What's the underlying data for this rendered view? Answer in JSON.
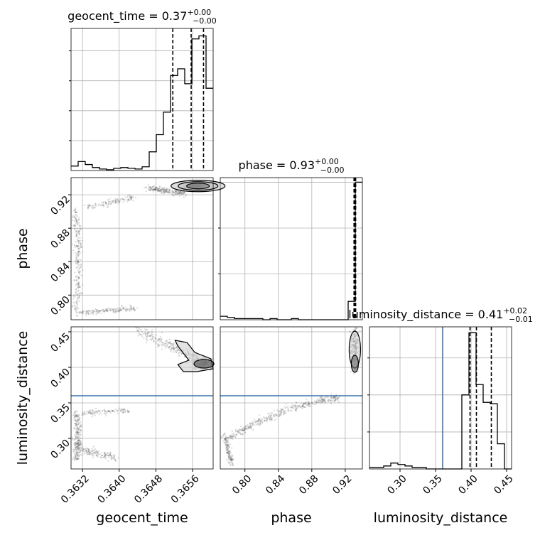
{
  "chart_data": {
    "type": "corner",
    "parameters": [
      "geocent_time",
      "phase",
      "luminosity_distance"
    ],
    "truth": {
      "luminosity_distance": 0.36,
      "truth_color": "#3b75af"
    },
    "histograms": [
      {
        "parameter": "geocent_time",
        "title_value": "0.37",
        "title_plus": "+0.00",
        "title_minus": "−0.00",
        "range": [
          0.36295,
          0.36605
        ],
        "bin_edges": [
          0.36295,
          0.363105,
          0.36326,
          0.363415,
          0.36357,
          0.363725,
          0.36388,
          0.364035,
          0.36419,
          0.364345,
          0.3645,
          0.364655,
          0.36481,
          0.364965,
          0.36512,
          0.365275,
          0.36543,
          0.365585,
          0.36574,
          0.365895,
          0.36605
        ],
        "counts": [
          6,
          12,
          8,
          4,
          2,
          1,
          3,
          4,
          3,
          2,
          5,
          25,
          48,
          78,
          127,
          136,
          116,
          176,
          180,
          110
        ],
        "ymax": 190,
        "quantiles": [
          0.36517,
          0.36557,
          0.36584
        ]
      },
      {
        "parameter": "phase",
        "title_value": "0.93",
        "title_plus": "+0.00",
        "title_minus": "−0.00",
        "range": [
          0.7705,
          0.9405
        ],
        "bin_edges": [
          0.7705,
          0.779,
          0.7875,
          0.796,
          0.8045,
          0.813,
          0.8215,
          0.83,
          0.8385,
          0.847,
          0.8555,
          0.864,
          0.8725,
          0.881,
          0.8895,
          0.898,
          0.9065,
          0.915,
          0.9235,
          0.932,
          0.9405
        ],
        "counts": [
          3,
          2,
          1,
          1,
          1,
          1,
          0,
          1,
          0,
          0,
          1,
          0,
          0,
          0,
          0,
          0,
          0,
          0,
          16,
          120
        ],
        "ymax": 124,
        "quantiles": [
          0.9305,
          0.9315,
          0.9325
        ]
      },
      {
        "parameter": "luminosity_distance",
        "title_value": "0.41",
        "title_plus": "+0.02",
        "title_minus": "−0.01",
        "range": [
          0.257,
          0.457
        ],
        "bin_edges": [
          0.257,
          0.267,
          0.277,
          0.287,
          0.297,
          0.307,
          0.317,
          0.327,
          0.337,
          0.347,
          0.357,
          0.367,
          0.377,
          0.387,
          0.397,
          0.407,
          0.417,
          0.427,
          0.437,
          0.447,
          0.457
        ],
        "counts": [
          1,
          1,
          2,
          4,
          3,
          2,
          1,
          1,
          0,
          0,
          0,
          0,
          0,
          50,
          92,
          57,
          45,
          44,
          17,
          0
        ],
        "ymax": 96,
        "quantiles": [
          0.3985,
          0.4075,
          0.4285
        ]
      }
    ],
    "panels_2d": [
      {
        "x": "geocent_time",
        "y": "phase"
      },
      {
        "x": "geocent_time",
        "y": "luminosity_distance"
      },
      {
        "x": "phase",
        "y": "luminosity_distance"
      }
    ],
    "ticks": {
      "geocent_time": [
        "0.3632",
        "0.3640",
        "0.3648",
        "0.3656"
      ],
      "phase": [
        "0.80",
        "0.84",
        "0.88",
        "0.92"
      ],
      "luminosity_distance": [
        "0.30",
        "0.35",
        "0.40",
        "0.45"
      ]
    },
    "xlabels": [
      "geocent_time",
      "phase",
      "luminosity_distance"
    ],
    "ylabels": [
      "phase",
      "luminosity_distance"
    ],
    "grid": true,
    "line_color": "#000000",
    "scatter_color": "#555555"
  }
}
